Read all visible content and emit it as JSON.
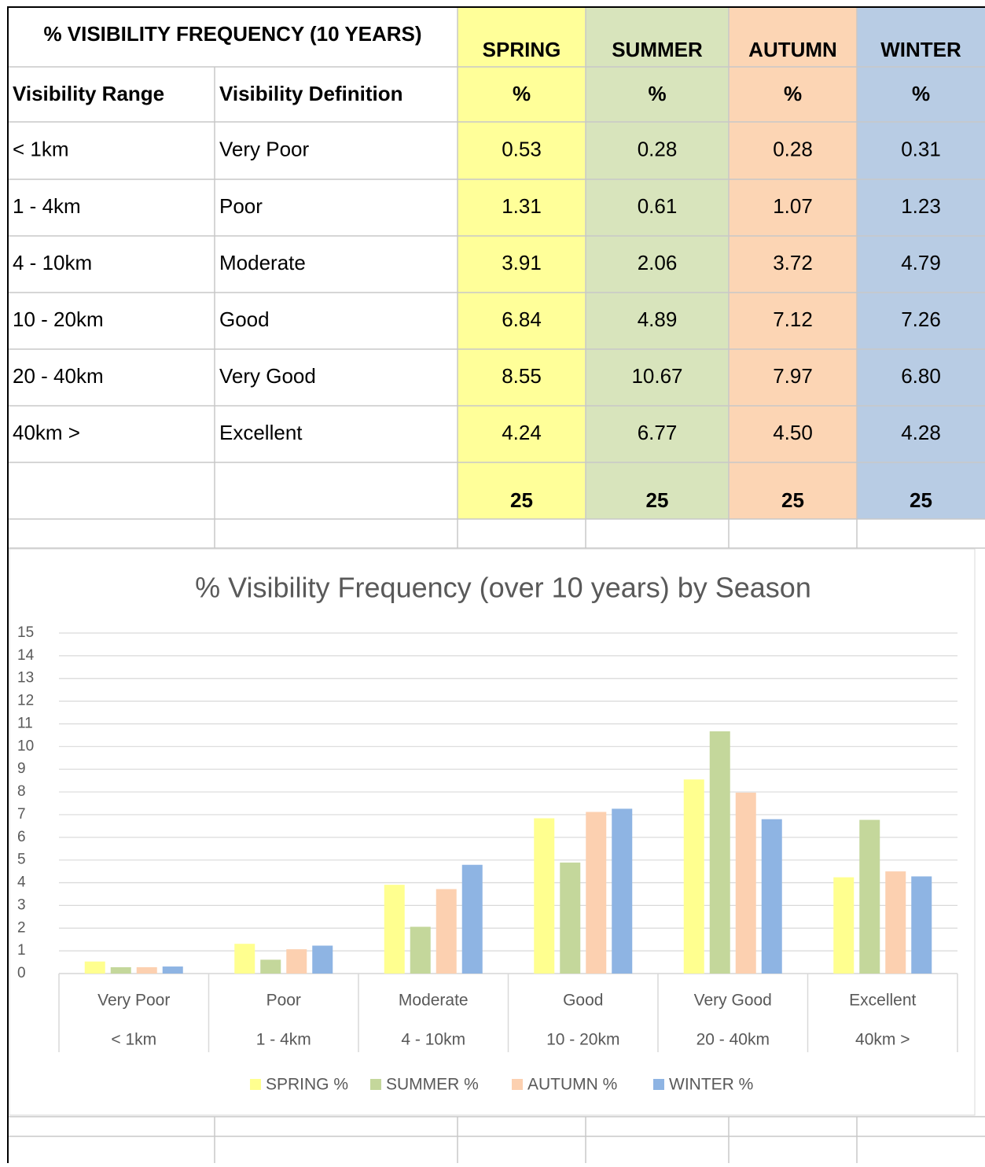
{
  "table": {
    "title": "% VISIBILITY FREQUENCY  (10 YEARS)",
    "seasons": [
      "SPRING",
      "SUMMER",
      "AUTUMN",
      "WINTER"
    ],
    "headers": [
      "Visibility Range",
      "Visibility Definition"
    ],
    "units": [
      "%",
      "%",
      "%",
      "%"
    ],
    "season_colors": [
      "#ffff99",
      "#d8e4bc",
      "#fcd5b4",
      "#b8cce4"
    ],
    "rows": [
      [
        "< 1km",
        "Very Poor",
        "0.53",
        "0.28",
        "0.28",
        "0.31"
      ],
      [
        "1 - 4km",
        "Poor",
        "1.31",
        "0.61",
        "1.07",
        "1.23"
      ],
      [
        "4 - 10km",
        "Moderate",
        "3.91",
        "2.06",
        "3.72",
        "4.79"
      ],
      [
        "10 - 20km",
        "Good",
        "6.84",
        "4.89",
        "7.12",
        "7.26"
      ],
      [
        "20 - 40km",
        "Very Good",
        "8.55",
        "10.67",
        "7.97",
        "6.80"
      ],
      [
        "40km  >",
        "Excellent",
        "4.24",
        "6.77",
        "4.50",
        "4.28"
      ]
    ],
    "totals": [
      "25",
      "25",
      "25",
      "25"
    ]
  },
  "chart_data": {
    "type": "bar",
    "title": "% Visibility Frequency (over 10 years) by Season",
    "categories": [
      "Very Poor",
      "Poor",
      "Moderate",
      "Good",
      "Very Good",
      "Excellent"
    ],
    "subcategories": [
      "< 1km",
      "1 - 4km",
      "4 - 10km",
      "10 - 20km",
      "20 - 40km",
      "40km  >"
    ],
    "series": [
      {
        "name": "SPRING %",
        "color": "#ffff8f",
        "values": [
          0.53,
          1.31,
          3.91,
          6.84,
          8.55,
          4.24
        ]
      },
      {
        "name": "SUMMER %",
        "color": "#c4d79b",
        "values": [
          0.28,
          0.61,
          2.06,
          4.89,
          10.67,
          6.77
        ]
      },
      {
        "name": "AUTUMN %",
        "color": "#fcd0b0",
        "values": [
          0.28,
          1.07,
          3.72,
          7.12,
          7.97,
          4.5
        ]
      },
      {
        "name": "WINTER %",
        "color": "#8eb4e3",
        "values": [
          0.31,
          1.23,
          4.79,
          7.26,
          6.8,
          4.28
        ]
      }
    ],
    "ylim": [
      0,
      15
    ],
    "yticks": [
      0,
      1,
      2,
      3,
      4,
      5,
      6,
      7,
      8,
      9,
      10,
      11,
      12,
      13,
      14,
      15
    ],
    "grid": true,
    "legend": "bottom"
  }
}
